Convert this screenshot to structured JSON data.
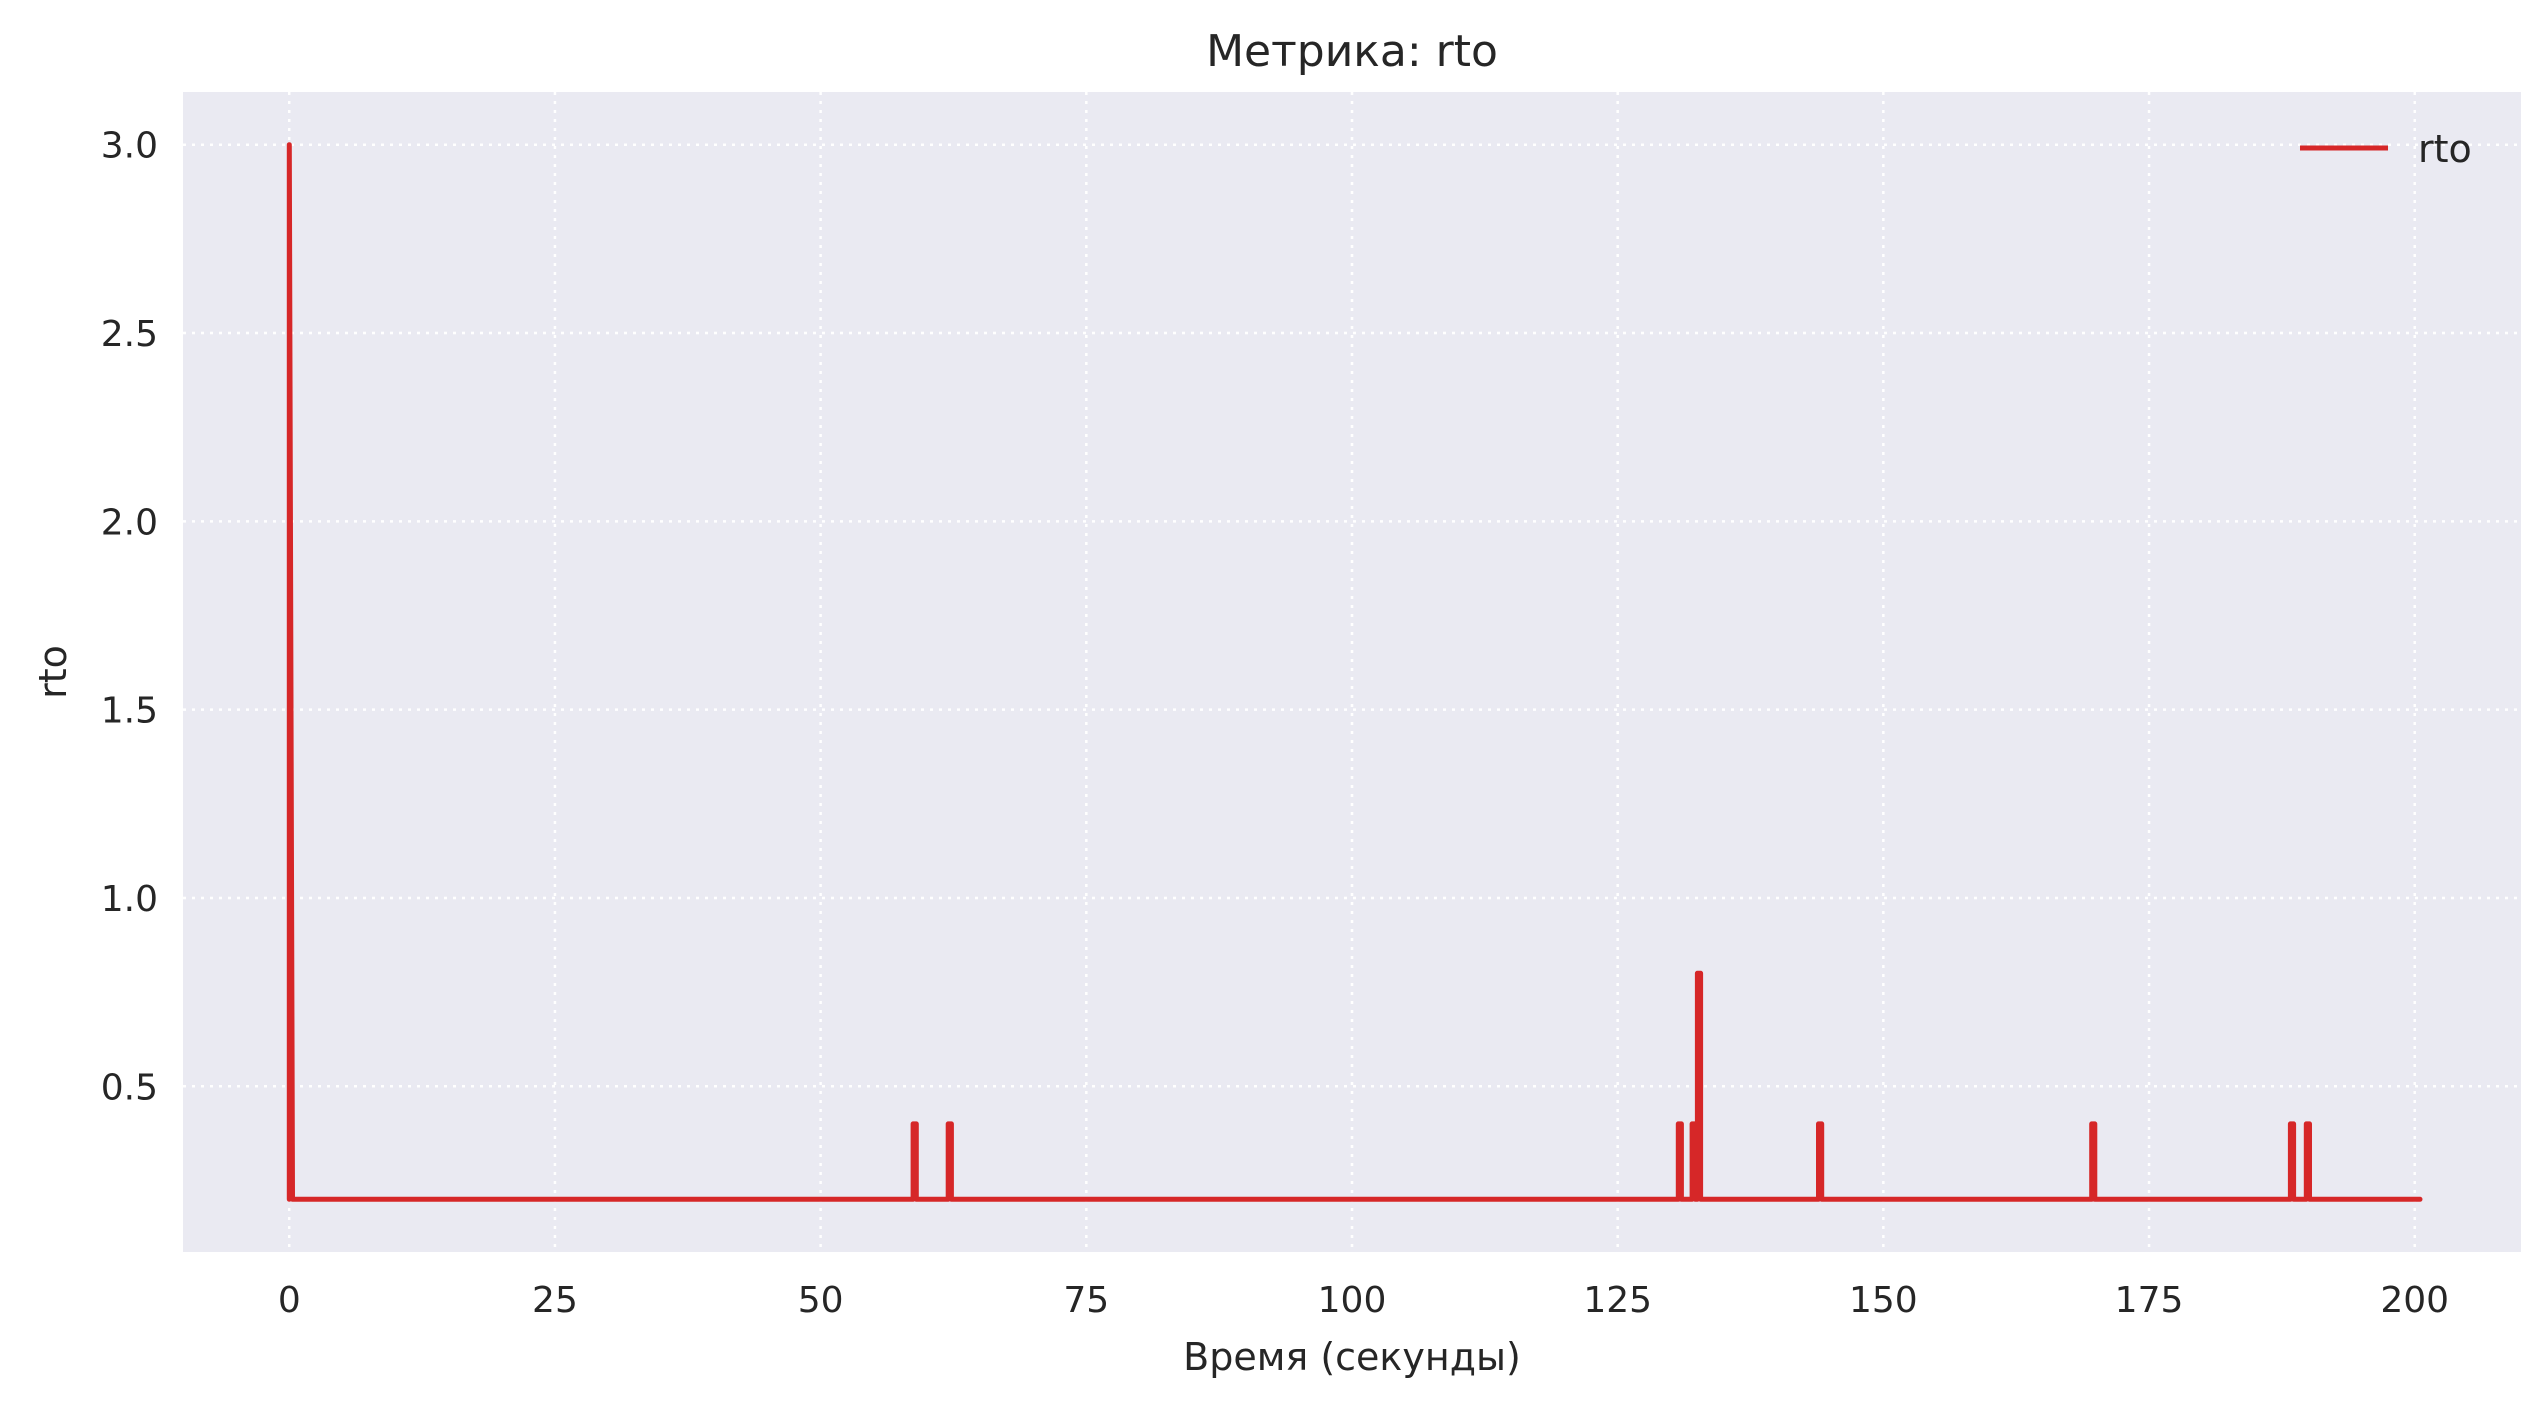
{
  "chart_data": {
    "type": "line",
    "title": "Метрика: rto",
    "xlabel": "Время (секунды)",
    "ylabel": "rto",
    "xlim": [
      -10,
      210
    ],
    "ylim": [
      0.06,
      3.14
    ],
    "xticks": [
      0,
      25,
      50,
      75,
      100,
      125,
      150,
      175,
      200
    ],
    "yticks": [
      0.5,
      1.0,
      1.5,
      2.0,
      2.5,
      3.0
    ],
    "xtick_labels": [
      "0",
      "25",
      "50",
      "75",
      "100",
      "125",
      "150",
      "175",
      "200"
    ],
    "ytick_labels": [
      "0.5",
      "1.0",
      "1.5",
      "2.0",
      "2.5",
      "3.0"
    ],
    "grid": true,
    "legend_position": "top-right",
    "colors": {
      "series": "#d62728",
      "plot_bg": "#eaeaf2",
      "grid": "#ffffff"
    },
    "series": [
      {
        "name": "rto",
        "x": [
          0,
          0,
          0.3,
          58.7,
          58.7,
          59.0,
          59.0,
          62.0,
          62.0,
          62.3,
          62.3,
          130.7,
          130.7,
          131.0,
          131.0,
          132.0,
          132.0,
          132.3,
          132.3,
          132.5,
          132.5,
          132.8,
          132.8,
          143.9,
          143.9,
          144.2,
          144.2,
          169.6,
          169.6,
          169.9,
          169.9,
          188.3,
          188.3,
          188.6,
          188.6,
          189.8,
          189.8,
          190.1,
          190.1,
          200.5
        ],
        "y": [
          0.2,
          3.0,
          0.2,
          0.2,
          0.4,
          0.4,
          0.2,
          0.2,
          0.4,
          0.4,
          0.2,
          0.2,
          0.4,
          0.4,
          0.2,
          0.2,
          0.4,
          0.4,
          0.2,
          0.2,
          0.8,
          0.8,
          0.2,
          0.2,
          0.4,
          0.4,
          0.2,
          0.2,
          0.4,
          0.4,
          0.2,
          0.2,
          0.4,
          0.4,
          0.2,
          0.2,
          0.4,
          0.4,
          0.2,
          0.2
        ]
      }
    ]
  }
}
